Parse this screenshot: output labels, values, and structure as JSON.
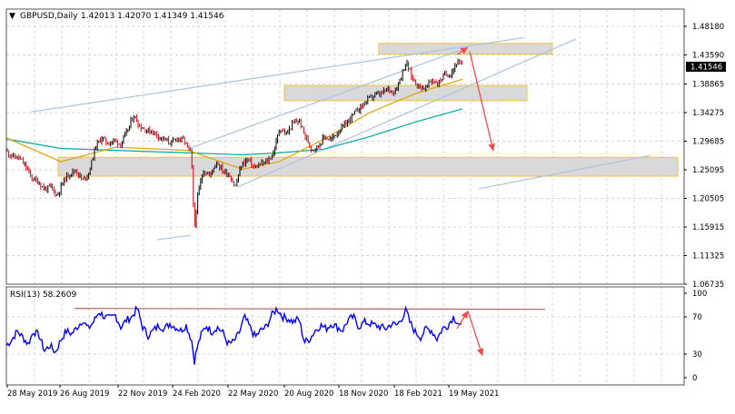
{
  "header": {
    "arrow_glyph": "▼",
    "symbol_timeframe": "GBPUSD,Daily",
    "ohlc": "1.42013 1.42070 1.41349 1.41546"
  },
  "indicator": {
    "label": "RSI(13) 58.2609"
  },
  "current_price_label": "1.41546",
  "colors": {
    "bull_candle": "#000000",
    "bear_candle": "#d8000f",
    "ma_fast": "#e0a100",
    "ma_slow": "#00a7a7",
    "rsi_line": "#0000ff",
    "zone_fill": "#d9d9d9",
    "zone_border": "#f0c23a",
    "trendline": "#a9c4dc",
    "arrow": "#f04b4b",
    "rsi_level_line": "#b46464",
    "grid": "#d6d6d6"
  },
  "chart_data": [
    {
      "type": "line",
      "title": "GBPUSD,Daily",
      "price_axis": {
        "tick_labels": [
          "1.48180",
          "1.43590",
          "1.38865",
          "1.34275",
          "1.29685",
          "1.25095",
          "1.20505",
          "1.15915",
          "1.11325",
          "1.06735"
        ],
        "ylim": [
          1.0674,
          1.5045
        ],
        "last_price": 1.41546
      },
      "time_axis": {
        "tick_labels": [
          "28 May 2019",
          "26 Aug 2019",
          "22 Nov 2019",
          "24 Feb 2020",
          "22 May 2020",
          "20 Aug 2020",
          "18 Nov 2020",
          "18 Feb 2021",
          "19 May 2021"
        ]
      },
      "ohlc_last": {
        "open": 1.42013,
        "high": 1.4207,
        "low": 1.41349,
        "close": 1.41546
      },
      "series": [
        {
          "kind": "price_close",
          "points": [
            [
              0,
              1.279
            ],
            [
              7,
              1.27
            ],
            [
              14,
              1.268
            ],
            [
              21,
              1.255
            ],
            [
              28,
              1.236
            ],
            [
              35,
              1.23
            ],
            [
              42,
              1.218
            ],
            [
              49,
              1.222
            ],
            [
              56,
              1.208
            ],
            [
              63,
              1.232
            ],
            [
              70,
              1.244
            ],
            [
              77,
              1.248
            ],
            [
              84,
              1.232
            ],
            [
              91,
              1.245
            ],
            [
              98,
              1.286
            ],
            [
              105,
              1.3
            ],
            [
              112,
              1.291
            ],
            [
              119,
              1.296
            ],
            [
              126,
              1.29
            ],
            [
              133,
              1.31
            ],
            [
              140,
              1.336
            ],
            [
              147,
              1.318
            ],
            [
              154,
              1.312
            ],
            [
              161,
              1.31
            ],
            [
              168,
              1.302
            ],
            [
              175,
              1.296
            ],
            [
              182,
              1.292
            ],
            [
              189,
              1.3
            ],
            [
              196,
              1.295
            ],
            [
              203,
              1.275
            ],
            [
              205,
              1.238
            ],
            [
              206,
              1.18
            ],
            [
              207,
              1.155
            ],
            [
              210,
              1.2
            ],
            [
              213,
              1.226
            ],
            [
              217,
              1.248
            ],
            [
              224,
              1.24
            ],
            [
              231,
              1.262
            ],
            [
              238,
              1.248
            ],
            [
              245,
              1.242
            ],
            [
              252,
              1.222
            ],
            [
              259,
              1.258
            ],
            [
              266,
              1.266
            ],
            [
              273,
              1.252
            ],
            [
              280,
              1.258
            ],
            [
              287,
              1.262
            ],
            [
              294,
              1.276
            ],
            [
              301,
              1.316
            ],
            [
              308,
              1.305
            ],
            [
              315,
              1.322
            ],
            [
              322,
              1.328
            ],
            [
              329,
              1.302
            ],
            [
              336,
              1.282
            ],
            [
              343,
              1.286
            ],
            [
              350,
              1.302
            ],
            [
              357,
              1.296
            ],
            [
              364,
              1.308
            ],
            [
              371,
              1.318
            ],
            [
              378,
              1.33
            ],
            [
              385,
              1.342
            ],
            [
              392,
              1.352
            ],
            [
              399,
              1.362
            ],
            [
              406,
              1.368
            ],
            [
              413,
              1.37
            ],
            [
              420,
              1.378
            ],
            [
              427,
              1.372
            ],
            [
              434,
              1.396
            ],
            [
              440,
              1.42
            ],
            [
              447,
              1.394
            ],
            [
              454,
              1.382
            ],
            [
              461,
              1.378
            ],
            [
              468,
              1.392
            ],
            [
              475,
              1.386
            ],
            [
              482,
              1.4
            ],
            [
              489,
              1.402
            ],
            [
              496,
              1.42
            ],
            [
              502,
              1.415
            ]
          ]
        },
        {
          "kind": "moving_average_fast",
          "points": [
            [
              0,
              1.3
            ],
            [
              60,
              1.262
            ],
            [
              120,
              1.285
            ],
            [
              200,
              1.28
            ],
            [
              260,
              1.25
            ],
            [
              300,
              1.262
            ],
            [
              350,
              1.298
            ],
            [
              400,
              1.34
            ],
            [
              450,
              1.37
            ],
            [
              502,
              1.393
            ]
          ]
        },
        {
          "kind": "moving_average_slow",
          "points": [
            [
              0,
              1.298
            ],
            [
              60,
              1.283
            ],
            [
              120,
              1.28
            ],
            [
              200,
              1.276
            ],
            [
              260,
              1.273
            ],
            [
              300,
              1.276
            ],
            [
              350,
              1.282
            ],
            [
              400,
              1.302
            ],
            [
              450,
              1.325
            ],
            [
              502,
              1.346
            ]
          ]
        }
      ],
      "annotations": {
        "zones": [
          {
            "x0": 417,
            "x1": 608,
            "y0": 1.433,
            "y1": 1.45
          },
          {
            "x0": 313,
            "x1": 580,
            "y0": 1.359,
            "y1": 1.383
          },
          {
            "x0": 64,
            "x1": 746,
            "y0": 1.239,
            "y1": 1.269
          }
        ],
        "trendlines": [
          {
            "x0": 34,
            "y0": 1.341,
            "x1": 576,
            "y1": 1.459
          },
          {
            "x0": 208,
            "y0": 1.283,
            "x1": 512,
            "y1": 1.442
          },
          {
            "x0": 262,
            "y0": 1.222,
            "x1": 634,
            "y1": 1.457
          },
          {
            "x0": 173,
            "y0": 1.138,
            "x1": 210,
            "y1": 1.145
          },
          {
            "x0": 527,
            "y0": 1.219,
            "x1": 716,
            "y1": 1.272
          }
        ],
        "arrows": [
          {
            "x0": 503,
            "y0": 1.432,
            "x1": 515,
            "y1": 1.444
          },
          {
            "x0": 517,
            "y0": 1.437,
            "x1": 543,
            "y1": 1.279
          }
        ]
      }
    },
    {
      "type": "line",
      "title": "RSI(13) 58.2609",
      "yaxis": {
        "tick_labels": [
          "100",
          "70",
          "30",
          "0"
        ],
        "ylim": [
          0,
          100
        ]
      },
      "last_value": 58.2609,
      "level_line": {
        "x0": 82,
        "x1": 600,
        "y0": 82,
        "y1": 81
      },
      "arrows": [
        {
          "x0": 503,
          "y0": 58,
          "x1": 515,
          "y1": 79
        },
        {
          "x0": 515,
          "y0": 79,
          "x1": 531,
          "y1": 26
        }
      ],
      "series": [
        {
          "name": "RSI(13)",
          "points": [
            [
              0,
              38
            ],
            [
              6,
              45
            ],
            [
              12,
              55
            ],
            [
              18,
              48
            ],
            [
              24,
              40
            ],
            [
              30,
              55
            ],
            [
              36,
              50
            ],
            [
              42,
              32
            ],
            [
              48,
              38
            ],
            [
              54,
              30
            ],
            [
              60,
              45
            ],
            [
              66,
              55
            ],
            [
              72,
              52
            ],
            [
              78,
              60
            ],
            [
              84,
              68
            ],
            [
              90,
              58
            ],
            [
              96,
              66
            ],
            [
              102,
              78
            ],
            [
              108,
              72
            ],
            [
              114,
              70
            ],
            [
              120,
              74
            ],
            [
              126,
              60
            ],
            [
              132,
              68
            ],
            [
              138,
              72
            ],
            [
              144,
              82
            ],
            [
              150,
              60
            ],
            [
              156,
              50
            ],
            [
              162,
              56
            ],
            [
              168,
              62
            ],
            [
              174,
              58
            ],
            [
              180,
              64
            ],
            [
              186,
              60
            ],
            [
              192,
              56
            ],
            [
              198,
              62
            ],
            [
              204,
              44
            ],
            [
              207,
              20
            ],
            [
              210,
              35
            ],
            [
              214,
              50
            ],
            [
              220,
              62
            ],
            [
              226,
              54
            ],
            [
              232,
              60
            ],
            [
              238,
              54
            ],
            [
              244,
              40
            ],
            [
              250,
              42
            ],
            [
              256,
              52
            ],
            [
              262,
              72
            ],
            [
              268,
              60
            ],
            [
              274,
              48
            ],
            [
              280,
              56
            ],
            [
              286,
              60
            ],
            [
              292,
              74
            ],
            [
              298,
              82
            ],
            [
              304,
              72
            ],
            [
              310,
              70
            ],
            [
              316,
              66
            ],
            [
              322,
              70
            ],
            [
              328,
              42
            ],
            [
              334,
              46
            ],
            [
              340,
              56
            ],
            [
              346,
              62
            ],
            [
              352,
              58
            ],
            [
              358,
              64
            ],
            [
              364,
              60
            ],
            [
              370,
              56
            ],
            [
              376,
              68
            ],
            [
              382,
              72
            ],
            [
              388,
              60
            ],
            [
              394,
              66
            ],
            [
              400,
              64
            ],
            [
              406,
              62
            ],
            [
              412,
              60
            ],
            [
              418,
              58
            ],
            [
              424,
              64
            ],
            [
              430,
              62
            ],
            [
              436,
              72
            ],
            [
              440,
              80
            ],
            [
              444,
              66
            ],
            [
              450,
              54
            ],
            [
              456,
              48
            ],
            [
              462,
              58
            ],
            [
              468,
              56
            ],
            [
              474,
              46
            ],
            [
              480,
              58
            ],
            [
              486,
              62
            ],
            [
              492,
              72
            ],
            [
              498,
              64
            ],
            [
              502,
              58
            ]
          ]
        }
      ]
    }
  ]
}
